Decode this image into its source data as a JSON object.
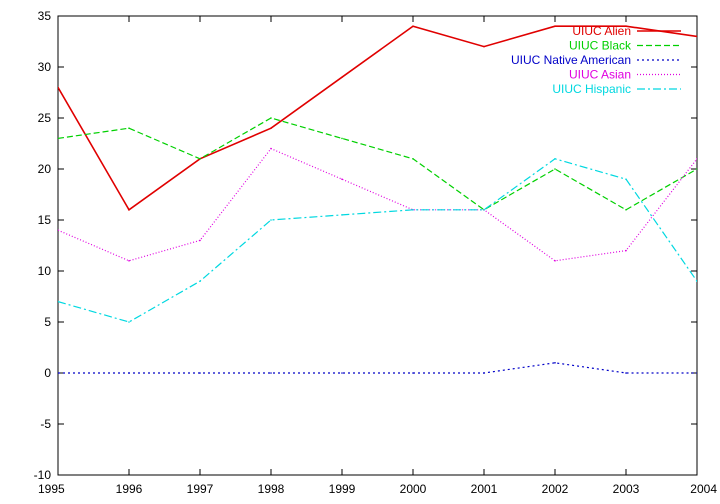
{
  "chart_data": {
    "type": "line",
    "x": [
      1995,
      1996,
      1997,
      1998,
      1999,
      2000,
      2001,
      2002,
      2003,
      2004
    ],
    "xlim": [
      1995,
      2004
    ],
    "ylim": [
      -10,
      35
    ],
    "x_ticks": [
      "1995",
      "1996",
      "1997",
      "1998",
      "1999",
      "2000",
      "2001",
      "2002",
      "2003",
      "2004"
    ],
    "y_ticks": [
      "-10",
      "-5",
      "0",
      "5",
      "10",
      "15",
      "20",
      "25",
      "30",
      "35"
    ],
    "grid": false,
    "legend_position": "top-right",
    "series": [
      {
        "name": "UIUC Alien",
        "color": "#e00000",
        "dash": "solid",
        "values": [
          28,
          16,
          21,
          24,
          29,
          34,
          32,
          34,
          34,
          33
        ]
      },
      {
        "name": "UIUC Black",
        "color": "#00d000",
        "dash": "dashed",
        "values": [
          23,
          24,
          21,
          25,
          23,
          21,
          16,
          20,
          16,
          20
        ]
      },
      {
        "name": "UIUC Native American",
        "color": "#0000c8",
        "dash": "dotted",
        "values": [
          0,
          0,
          0,
          0,
          0,
          0,
          0,
          1,
          0,
          0
        ]
      },
      {
        "name": "UIUC Asian",
        "color": "#e000e0",
        "dash": "fine-dotted",
        "values": [
          14,
          11,
          13,
          22,
          19,
          16,
          16,
          11,
          12,
          21
        ]
      },
      {
        "name": "UIUC Hispanic",
        "color": "#00d8e0",
        "dash": "dash-dot",
        "values": [
          7,
          5,
          9,
          15,
          15.5,
          16,
          16,
          21,
          19,
          9
        ]
      }
    ]
  }
}
